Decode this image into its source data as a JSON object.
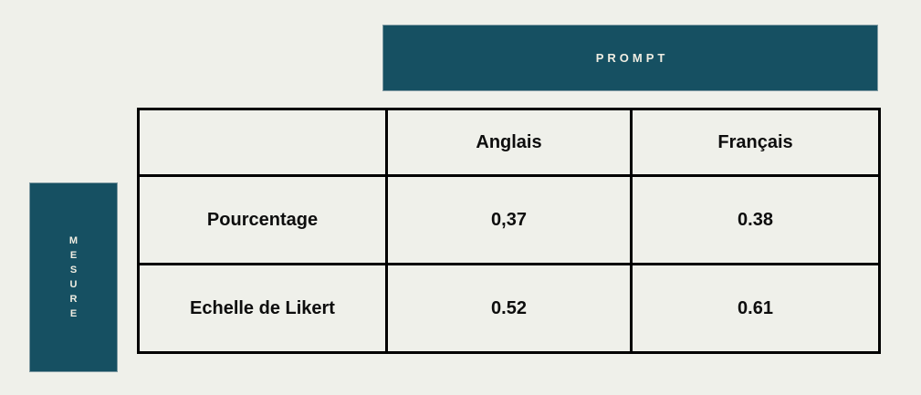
{
  "colors": {
    "teal": "#165062",
    "background": "#eff0ea",
    "banner-text": "#f0ede2",
    "table-border": "#000000",
    "text": "#0d0d0d"
  },
  "banners": {
    "prompt": {
      "label": "PROMPT"
    },
    "mesure": {
      "label": "MESURE"
    }
  },
  "table": {
    "header": [
      "",
      "Anglais",
      "Français"
    ],
    "rows": [
      {
        "label": "Pourcentage",
        "values": [
          "0,37",
          "0.38"
        ]
      },
      {
        "label": "Echelle de Likert",
        "values": [
          "0.52",
          "0.61"
        ]
      }
    ]
  },
  "chart_data": {
    "type": "table",
    "column_axis_label": "PROMPT",
    "row_axis_label": "MESURE",
    "columns": [
      "Anglais",
      "Français"
    ],
    "rows": [
      "Pourcentage",
      "Echelle de Likert"
    ],
    "values": [
      [
        0.37,
        0.38
      ],
      [
        0.52,
        0.61
      ]
    ],
    "display_values": [
      [
        "0,37",
        "0.38"
      ],
      [
        "0.52",
        "0.61"
      ]
    ]
  }
}
